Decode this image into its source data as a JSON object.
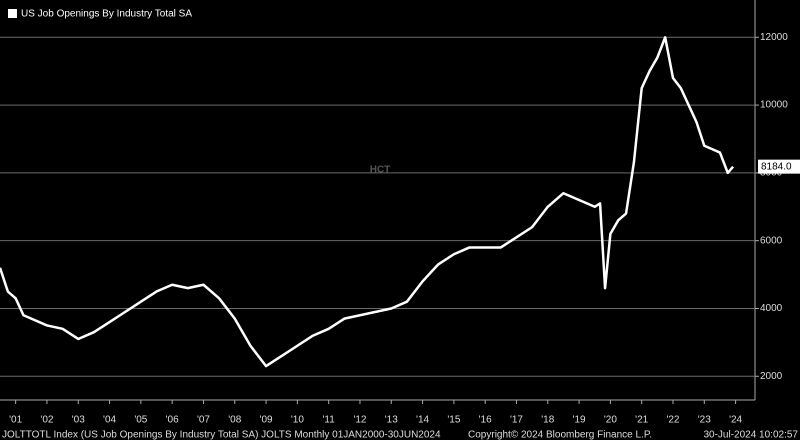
{
  "chart_data": {
    "type": "line",
    "title": "US Job Openings By Industry Total SA",
    "watermark": "HCT",
    "footer_left": "JOLTTOTL Index (US Job Openings By Industry Total SA) JOLTS  Monthly 01JAN2000-30JUN2024",
    "footer_center": "Copyright© 2024 Bloomberg Finance L.P.",
    "footer_right": "30-Jul-2024 10:02:57",
    "x": [
      2001.0,
      2001.25,
      2001.5,
      2001.75,
      2002.0,
      2002.5,
      2003.0,
      2003.5,
      2004.0,
      2004.5,
      2005.0,
      2005.5,
      2006.0,
      2006.5,
      2007.0,
      2007.5,
      2008.0,
      2008.5,
      2009.0,
      2009.5,
      2010.0,
      2010.5,
      2011.0,
      2011.5,
      2012.0,
      2012.5,
      2013.0,
      2013.5,
      2014.0,
      2014.5,
      2015.0,
      2015.5,
      2016.0,
      2016.5,
      2017.0,
      2017.5,
      2018.0,
      2018.5,
      2019.0,
      2019.5,
      2020.0,
      2020.17,
      2020.33,
      2020.5,
      2020.75,
      2021.0,
      2021.25,
      2021.5,
      2021.75,
      2022.0,
      2022.25,
      2022.5,
      2022.75,
      2023.0,
      2023.25,
      2023.5,
      2023.75,
      2024.0,
      2024.25,
      2024.42
    ],
    "series": [
      {
        "name": "US Job Openings By Industry Total SA",
        "color": "#ffffff",
        "values": [
          5200,
          4500,
          4300,
          3800,
          3700,
          3500,
          3400,
          3100,
          3300,
          3600,
          3900,
          4200,
          4500,
          4700,
          4600,
          4700,
          4300,
          3700,
          2900,
          2300,
          2600,
          2900,
          3200,
          3400,
          3700,
          3800,
          3900,
          4000,
          4200,
          4800,
          5300,
          5600,
          5800,
          5800,
          5800,
          6100,
          6400,
          7000,
          7400,
          7200,
          7000,
          7100,
          4600,
          6200,
          6600,
          6800,
          8300,
          10500,
          11000,
          11400,
          12000,
          10800,
          10500,
          10000,
          9500,
          8800,
          8700,
          8600,
          8000,
          8184
        ],
        "value_labels": [
          null,
          null,
          null,
          null,
          null,
          null,
          null,
          null,
          null,
          null,
          null,
          null,
          null,
          null,
          null,
          null,
          null,
          null,
          null,
          null,
          null,
          null,
          null,
          null,
          null,
          null,
          null,
          null,
          null,
          null,
          null,
          null,
          null,
          null,
          null,
          null,
          null,
          null,
          null,
          null,
          null,
          null,
          null,
          null,
          null,
          null,
          null,
          null,
          null,
          null,
          null,
          null,
          null,
          null,
          null,
          null,
          null,
          null,
          null,
          "8184.0"
        ]
      }
    ],
    "xlim": [
      2001,
      2025.12
    ],
    "xticks": [
      {
        "value": 2001.5,
        "label": "'01"
      },
      {
        "value": 2002.5,
        "label": "'02"
      },
      {
        "value": 2003.5,
        "label": "'03"
      },
      {
        "value": 2004.5,
        "label": "'04"
      },
      {
        "value": 2005.5,
        "label": "'05"
      },
      {
        "value": 2006.5,
        "label": "'06"
      },
      {
        "value": 2007.5,
        "label": "'07"
      },
      {
        "value": 2008.5,
        "label": "'08"
      },
      {
        "value": 2009.5,
        "label": "'09"
      },
      {
        "value": 2010.5,
        "label": "'10"
      },
      {
        "value": 2011.5,
        "label": "'11"
      },
      {
        "value": 2012.5,
        "label": "'12"
      },
      {
        "value": 2013.5,
        "label": "'13"
      },
      {
        "value": 2014.5,
        "label": "'14"
      },
      {
        "value": 2015.5,
        "label": "'15"
      },
      {
        "value": 2016.5,
        "label": "'16"
      },
      {
        "value": 2017.5,
        "label": "'17"
      },
      {
        "value": 2018.5,
        "label": "'18"
      },
      {
        "value": 2019.5,
        "label": "'19"
      },
      {
        "value": 2020.5,
        "label": "'20"
      },
      {
        "value": 2021.5,
        "label": "'21"
      },
      {
        "value": 2022.5,
        "label": "'22"
      },
      {
        "value": 2023.5,
        "label": "'23"
      },
      {
        "value": 2024.5,
        "label": "'24"
      }
    ],
    "ylim": [
      1300,
      13100
    ],
    "yticks": [
      2000,
      4000,
      6000,
      8000,
      10000,
      12000
    ],
    "grid": true
  }
}
